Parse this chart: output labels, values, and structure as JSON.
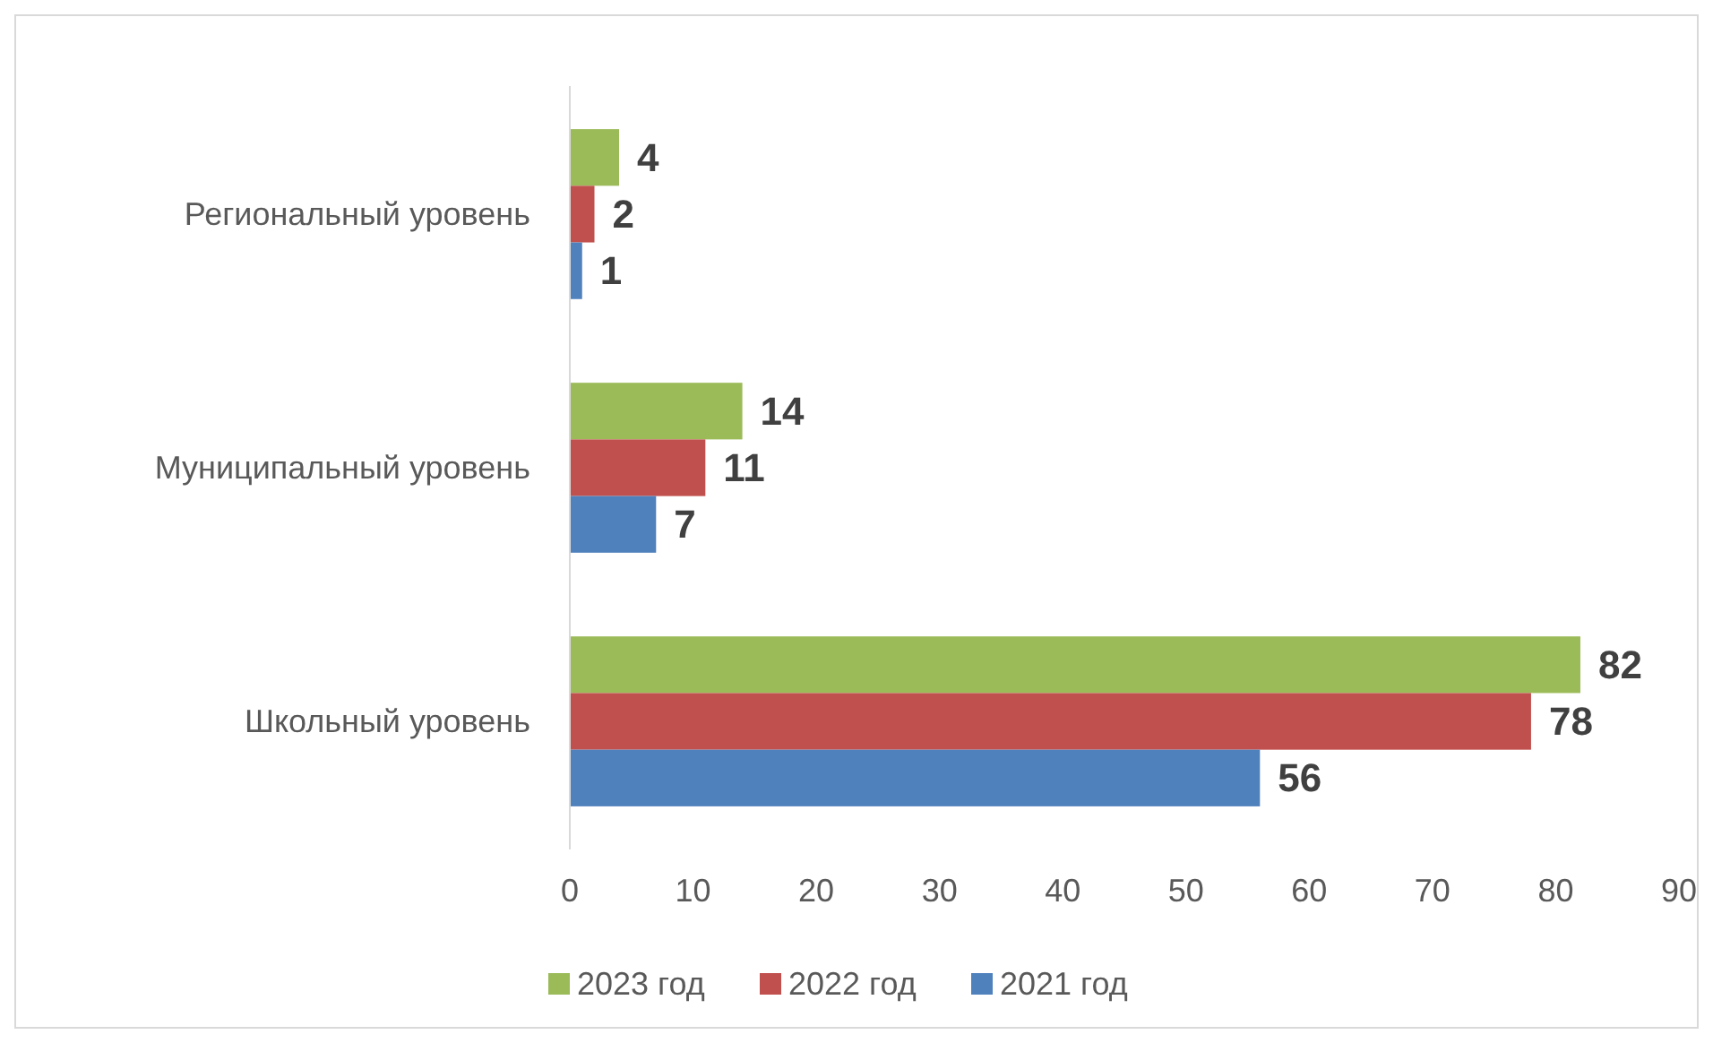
{
  "chart_data": {
    "type": "bar",
    "orientation": "horizontal",
    "categories": [
      "Региональный уровень",
      "Муниципальный уровень",
      "Школьный уровень"
    ],
    "series": [
      {
        "name": "2023 год",
        "color": "#9bbb59",
        "values": [
          4,
          14,
          82
        ]
      },
      {
        "name": "2022 год",
        "color": "#c0504d",
        "values": [
          2,
          11,
          78
        ]
      },
      {
        "name": "2021 год",
        "color": "#4f81bd",
        "values": [
          1,
          7,
          56
        ]
      }
    ],
    "xlim": [
      0,
      90
    ],
    "xticks": [
      0,
      10,
      20,
      30,
      40,
      50,
      60,
      70,
      80,
      90
    ],
    "data_labels": true,
    "legend": "bottom",
    "grid": false
  }
}
